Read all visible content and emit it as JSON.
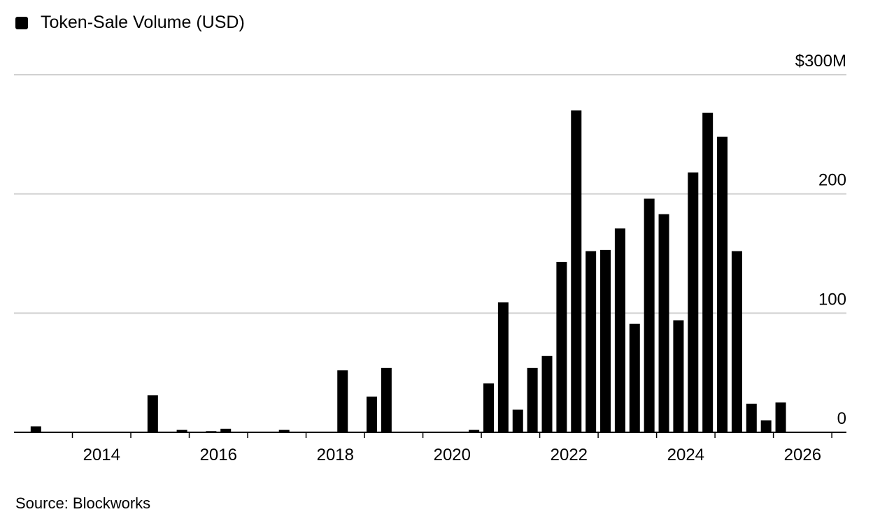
{
  "chart_data": {
    "type": "bar",
    "legend": [
      {
        "name": "Token-Sale Volume (USD)",
        "color": "#000000"
      }
    ],
    "legend_placement": "top-left",
    "source": "Source: Blockworks",
    "y_axis": {
      "range": [
        0,
        300
      ],
      "ticks": [
        0,
        100,
        200,
        300
      ],
      "tick_labels": [
        "0",
        "100",
        "200",
        "$300M"
      ],
      "side": "right",
      "grid": true
    },
    "x_axis": {
      "range": [
        2013.0,
        2027.25
      ],
      "tick_years": [
        2014,
        2015,
        2016,
        2017,
        2018,
        2019,
        2020,
        2021,
        2022,
        2023,
        2024,
        2025,
        2026,
        2027
      ],
      "label_years": [
        "2014",
        "2016",
        "2018",
        "2020",
        "2022",
        "2024",
        "2026"
      ]
    },
    "series": [
      {
        "name": "Token-Sale Volume (USD)",
        "color": "#000000",
        "points": [
          {
            "x": "2013 Q2",
            "y": 5
          },
          {
            "x": "2015 Q2",
            "y": 31
          },
          {
            "x": "2015 Q4",
            "y": 2
          },
          {
            "x": "2016 Q2",
            "y": 1
          },
          {
            "x": "2016 Q3",
            "y": 3
          },
          {
            "x": "2017 Q3",
            "y": 2
          },
          {
            "x": "2018 Q3",
            "y": 52
          },
          {
            "x": "2019 Q1",
            "y": 30
          },
          {
            "x": "2019 Q2",
            "y": 54
          },
          {
            "x": "2020 Q4",
            "y": 2
          },
          {
            "x": "2021 Q1",
            "y": 41
          },
          {
            "x": "2021 Q2",
            "y": 109
          },
          {
            "x": "2021 Q3",
            "y": 19
          },
          {
            "x": "2021 Q4",
            "y": 54
          },
          {
            "x": "2022 Q1",
            "y": 64
          },
          {
            "x": "2022 Q2",
            "y": 143
          },
          {
            "x": "2022 Q3",
            "y": 270
          },
          {
            "x": "2022 Q4",
            "y": 152
          },
          {
            "x": "2023 Q1",
            "y": 153
          },
          {
            "x": "2023 Q2",
            "y": 171
          },
          {
            "x": "2023 Q3",
            "y": 91
          },
          {
            "x": "2023 Q4",
            "y": 196
          },
          {
            "x": "2024 Q1",
            "y": 183
          },
          {
            "x": "2024 Q2",
            "y": 94
          },
          {
            "x": "2024 Q3",
            "y": 218
          },
          {
            "x": "2024 Q4",
            "y": 268
          },
          {
            "x": "2025 Q1",
            "y": 248
          },
          {
            "x": "2025 Q2",
            "y": 152
          },
          {
            "x": "2025 Q3",
            "y": 24
          },
          {
            "x": "2025 Q4",
            "y": 10
          },
          {
            "x": "2026 Q1",
            "y": 25
          }
        ]
      }
    ]
  }
}
